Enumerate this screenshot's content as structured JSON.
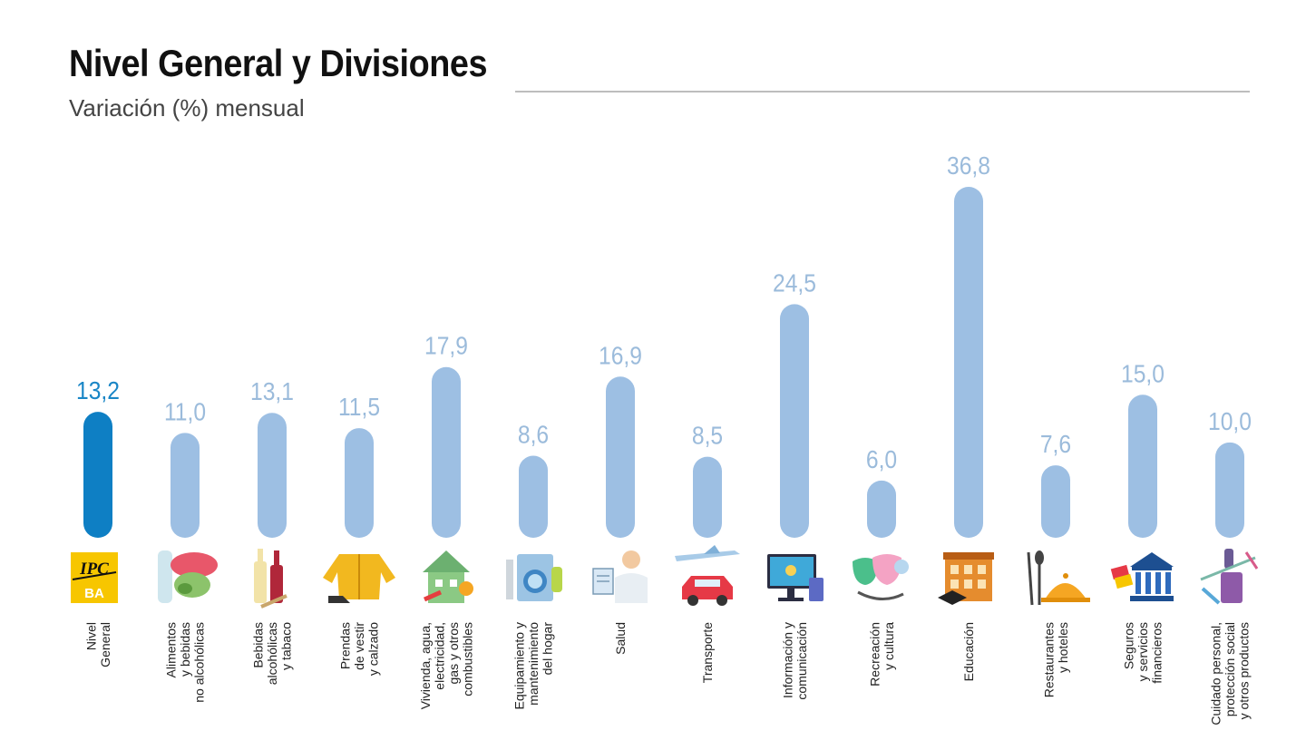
{
  "header": {
    "title": "Nivel General y Divisiones",
    "subtitle": "Variación (%) mensual"
  },
  "colors": {
    "highlight_bar": "#0e7fc4",
    "highlight_label": "#1a86c6",
    "bar": "#9dbfe3",
    "value_label": "#9bbbdb"
  },
  "chart_data": {
    "type": "bar",
    "title": "Nivel General y Divisiones",
    "subtitle": "Variación (%) mensual",
    "ylim": [
      0,
      40
    ],
    "grid": false,
    "categories": [
      [
        "Nivel",
        "General"
      ],
      [
        "Alimentos",
        "y bebidas",
        "no alcohólicas"
      ],
      [
        "Bebidas",
        "alcohólicas",
        "y tabaco"
      ],
      [
        "Prendas",
        "de vestir",
        "y calzado"
      ],
      [
        "Vivienda, agua,",
        "electricidad,",
        "gas y otros",
        "combustibles"
      ],
      [
        "Equipamiento y",
        "mantenimiento",
        "del hogar"
      ],
      [
        "Salud"
      ],
      [
        "Transporte"
      ],
      [
        "Información y",
        "comunicación"
      ],
      [
        "Recreación",
        "y cultura"
      ],
      [
        "Educación"
      ],
      [
        "Restaurantes",
        "y hoteles"
      ],
      [
        "Seguros",
        "y servicios",
        "financieros"
      ],
      [
        "Cuidado personal,",
        "protección social",
        "y otros productos"
      ]
    ],
    "values": [
      13.2,
      11.0,
      13.1,
      11.5,
      17.9,
      8.6,
      16.9,
      8.5,
      24.5,
      6.0,
      36.8,
      7.6,
      15.0,
      10.0
    ],
    "value_labels": [
      "13,2",
      "11,0",
      "13,1",
      "11,5",
      "17,9",
      "8,6",
      "16,9",
      "8,5",
      "24,5",
      "6,0",
      "36,8",
      "7,6",
      "15,0",
      "10,0"
    ],
    "highlight_index": 0,
    "icons": [
      "ipc-ba-logo-icon",
      "food-icon",
      "wine-bottles-icon",
      "jacket-shoe-icon",
      "house-icon",
      "washing-machine-icon",
      "doctor-icon",
      "plane-car-icon",
      "computer-icon",
      "theater-masks-icon",
      "school-building-icon",
      "cutlery-cloche-icon",
      "bank-icon",
      "personal-care-icon"
    ],
    "icon_text": {
      "ipc_top": "IPC",
      "ipc_bottom": "BA"
    }
  }
}
